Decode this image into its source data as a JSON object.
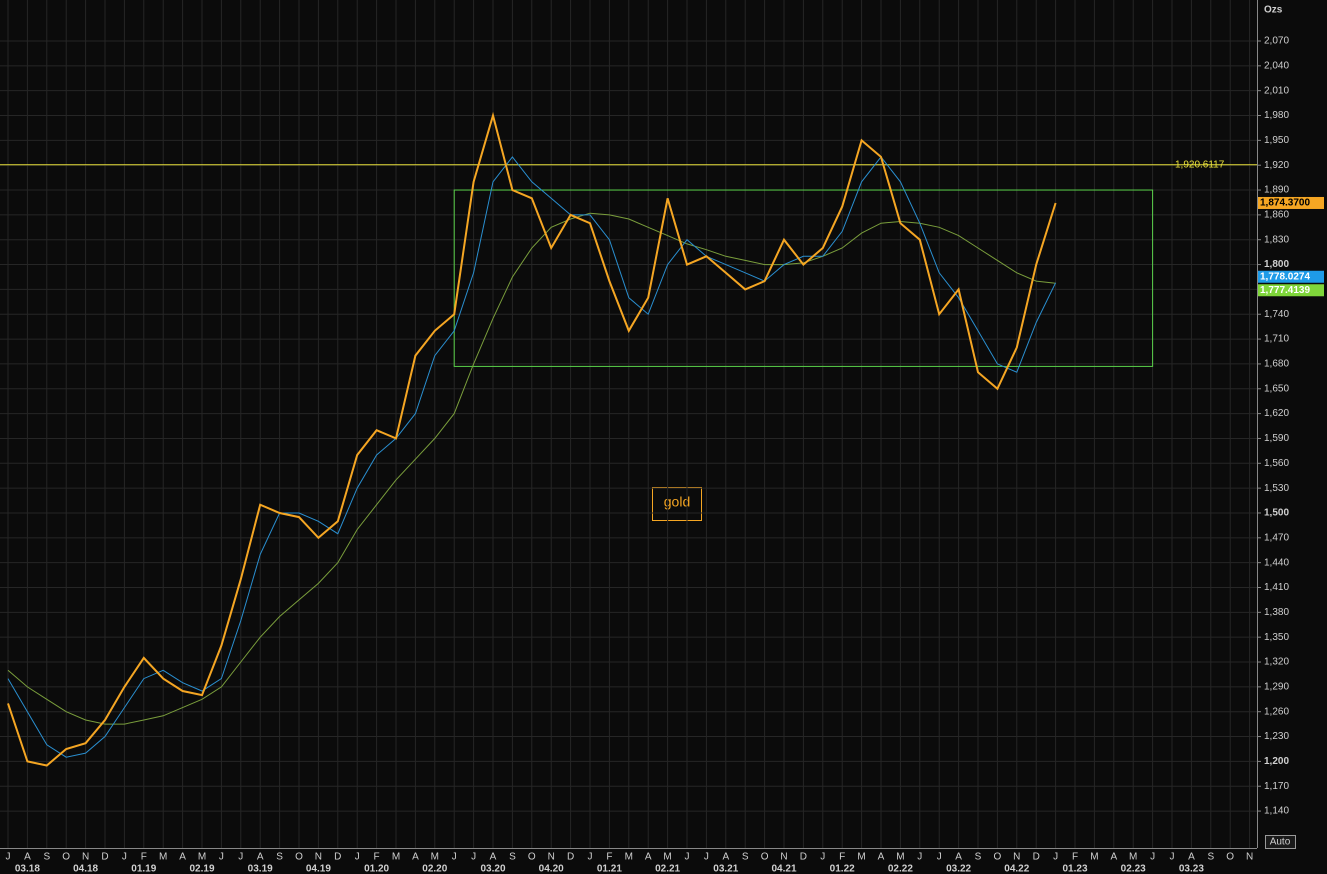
{
  "chart_data": {
    "type": "line",
    "unit_label": "Ozs",
    "annotation": "gold",
    "auto_button": "Auto",
    "ylim": [
      1095.4,
      2119.5
    ],
    "yticks": [
      {
        "value": 1140,
        "label": "1,140"
      },
      {
        "value": 1170,
        "label": "1,170"
      },
      {
        "value": 1200,
        "label": "1,200"
      },
      {
        "value": 1230,
        "label": "1,230"
      },
      {
        "value": 1260,
        "label": "1,260"
      },
      {
        "value": 1290,
        "label": "1,290"
      },
      {
        "value": 1320,
        "label": "1,320"
      },
      {
        "value": 1350,
        "label": "1,350"
      },
      {
        "value": 1380,
        "label": "1,380"
      },
      {
        "value": 1410,
        "label": "1,410"
      },
      {
        "value": 1440,
        "label": "1,440"
      },
      {
        "value": 1470,
        "label": "1,470"
      },
      {
        "value": 1500,
        "label": "1,500"
      },
      {
        "value": 1530,
        "label": "1,530"
      },
      {
        "value": 1560,
        "label": "1,560"
      },
      {
        "value": 1590,
        "label": "1,590"
      },
      {
        "value": 1620,
        "label": "1,620"
      },
      {
        "value": 1650,
        "label": "1,650"
      },
      {
        "value": 1680,
        "label": "1,680"
      },
      {
        "value": 1710,
        "label": "1,710"
      },
      {
        "value": 1740,
        "label": "1,740"
      },
      {
        "value": 1770,
        "label": "1,770"
      },
      {
        "value": 1800,
        "label": "1,800"
      },
      {
        "value": 1830,
        "label": "1,830"
      },
      {
        "value": 1860,
        "label": "1,860"
      },
      {
        "value": 1890,
        "label": "1,890"
      },
      {
        "value": 1920,
        "label": "1,920"
      },
      {
        "value": 1950,
        "label": "1,950"
      },
      {
        "value": 1980,
        "label": "1,980"
      },
      {
        "value": 2010,
        "label": "2,010"
      },
      {
        "value": 2040,
        "label": "2,040"
      },
      {
        "value": 2070,
        "label": "2,070"
      }
    ],
    "xticks": [
      {
        "value": "2018-07",
        "label": "J"
      },
      {
        "value": "2018-08",
        "label": "A"
      },
      {
        "value": "2018-09",
        "label": "S"
      },
      {
        "value": "2018-10",
        "label": "O"
      },
      {
        "value": "2018-11",
        "label": "N"
      },
      {
        "value": "2018-12",
        "label": "D"
      },
      {
        "value": "2019-01",
        "label": "J"
      },
      {
        "value": "2019-02",
        "label": "F"
      },
      {
        "value": "2019-03",
        "label": "M"
      },
      {
        "value": "2019-04",
        "label": "A"
      },
      {
        "value": "2019-05",
        "label": "M"
      },
      {
        "value": "2019-06",
        "label": "J"
      },
      {
        "value": "2019-07",
        "label": "J"
      },
      {
        "value": "2019-08",
        "label": "A"
      },
      {
        "value": "2019-09",
        "label": "S"
      },
      {
        "value": "2019-10",
        "label": "O"
      },
      {
        "value": "2019-11",
        "label": "N"
      },
      {
        "value": "2019-12",
        "label": "D"
      },
      {
        "value": "2020-01",
        "label": "J"
      },
      {
        "value": "2020-02",
        "label": "F"
      },
      {
        "value": "2020-03",
        "label": "M"
      },
      {
        "value": "2020-04",
        "label": "A"
      },
      {
        "value": "2020-05",
        "label": "M"
      },
      {
        "value": "2020-06",
        "label": "J"
      },
      {
        "value": "2020-07",
        "label": "J"
      },
      {
        "value": "2020-08",
        "label": "A"
      },
      {
        "value": "2020-09",
        "label": "S"
      },
      {
        "value": "2020-10",
        "label": "O"
      },
      {
        "value": "2020-11",
        "label": "N"
      },
      {
        "value": "2020-12",
        "label": "D"
      },
      {
        "value": "2021-01",
        "label": "J"
      },
      {
        "value": "2021-02",
        "label": "F"
      },
      {
        "value": "2021-03",
        "label": "M"
      },
      {
        "value": "2021-04",
        "label": "A"
      },
      {
        "value": "2021-05",
        "label": "M"
      },
      {
        "value": "2021-06",
        "label": "J"
      },
      {
        "value": "2021-07",
        "label": "J"
      },
      {
        "value": "2021-08",
        "label": "A"
      },
      {
        "value": "2021-09",
        "label": "S"
      },
      {
        "value": "2021-10",
        "label": "O"
      },
      {
        "value": "2021-11",
        "label": "N"
      },
      {
        "value": "2021-12",
        "label": "D"
      },
      {
        "value": "2022-01",
        "label": "J"
      },
      {
        "value": "2022-02",
        "label": "F"
      },
      {
        "value": "2022-03",
        "label": "M"
      },
      {
        "value": "2022-04",
        "label": "A"
      },
      {
        "value": "2022-05",
        "label": "M"
      },
      {
        "value": "2022-06",
        "label": "J"
      },
      {
        "value": "2022-07",
        "label": "J"
      },
      {
        "value": "2022-08",
        "label": "A"
      },
      {
        "value": "2022-09",
        "label": "S"
      },
      {
        "value": "2022-10",
        "label": "O"
      },
      {
        "value": "2022-11",
        "label": "N"
      },
      {
        "value": "2022-12",
        "label": "D"
      },
      {
        "value": "2023-01",
        "label": "J"
      },
      {
        "value": "2023-02",
        "label": "F"
      },
      {
        "value": "2023-03",
        "label": "M"
      },
      {
        "value": "2023-04",
        "label": "A"
      },
      {
        "value": "2023-05",
        "label": "M"
      },
      {
        "value": "2023-06",
        "label": "J"
      },
      {
        "value": "2023-07",
        "label": "J"
      },
      {
        "value": "2023-08",
        "label": "A"
      },
      {
        "value": "2023-09",
        "label": "S"
      },
      {
        "value": "2023-10",
        "label": "O"
      },
      {
        "value": "2023-11",
        "label": "N"
      }
    ],
    "quarter_ticks": [
      {
        "value": "2018-08",
        "label": "03.18"
      },
      {
        "value": "2018-11",
        "label": "04.18"
      },
      {
        "value": "2019-02",
        "label": "01.19"
      },
      {
        "value": "2019-05",
        "label": "02.19"
      },
      {
        "value": "2019-08",
        "label": "03.19"
      },
      {
        "value": "2019-11",
        "label": "04.19"
      },
      {
        "value": "2020-02",
        "label": "01.20"
      },
      {
        "value": "2020-05",
        "label": "02.20"
      },
      {
        "value": "2020-08",
        "label": "03.20"
      },
      {
        "value": "2020-11",
        "label": "04.20"
      },
      {
        "value": "2021-02",
        "label": "01.21"
      },
      {
        "value": "2021-05",
        "label": "02.21"
      },
      {
        "value": "2021-08",
        "label": "03.21"
      },
      {
        "value": "2021-11",
        "label": "04.21"
      },
      {
        "value": "2022-02",
        "label": "01.22"
      },
      {
        "value": "2022-05",
        "label": "02.22"
      },
      {
        "value": "2022-08",
        "label": "03.22"
      },
      {
        "value": "2022-11",
        "label": "04.22"
      },
      {
        "value": "2023-02",
        "label": "01.23"
      },
      {
        "value": "2023-05",
        "label": "02.23"
      },
      {
        "value": "2023-08",
        "label": "03.23"
      }
    ],
    "grid": true,
    "x": [
      "2018-07",
      "2018-08",
      "2018-09",
      "2018-10",
      "2018-11",
      "2018-12",
      "2019-01",
      "2019-02",
      "2019-03",
      "2019-04",
      "2019-05",
      "2019-06",
      "2019-07",
      "2019-08",
      "2019-09",
      "2019-10",
      "2019-11",
      "2019-12",
      "2020-01",
      "2020-02",
      "2020-03",
      "2020-04",
      "2020-05",
      "2020-06",
      "2020-07",
      "2020-08",
      "2020-09",
      "2020-10",
      "2020-11",
      "2020-12",
      "2021-01",
      "2021-02",
      "2021-03",
      "2021-04",
      "2021-05",
      "2021-06",
      "2021-07",
      "2021-08",
      "2021-09",
      "2021-10",
      "2021-11",
      "2021-12",
      "2022-01",
      "2022-02",
      "2022-03",
      "2022-04",
      "2022-05",
      "2022-06",
      "2022-07",
      "2022-08",
      "2022-09",
      "2022-10",
      "2022-11",
      "2022-12",
      "2023-01"
    ],
    "series": [
      {
        "color": "#7a9e3c",
        "values": [
          1310,
          1290,
          1275,
          1260,
          1250,
          1245,
          1245,
          1250,
          1255,
          1265,
          1275,
          1290,
          1320,
          1350,
          1375,
          1395,
          1415,
          1440,
          1480,
          1510,
          1540,
          1565,
          1590,
          1620,
          1680,
          1735,
          1785,
          1820,
          1845,
          1855,
          1862,
          1860,
          1855,
          1845,
          1835,
          1825,
          1818,
          1810,
          1805,
          1800,
          1800,
          1802,
          1810,
          1820,
          1838,
          1850,
          1852,
          1850,
          1845,
          1835,
          1820,
          1805,
          1790,
          1780,
          1777.4139
        ],
        "last_value_label": "1,777.4139",
        "tag_color": "#7fd63a"
      },
      {
        "color": "#2a8fd0",
        "values": [
          1300,
          1260,
          1220,
          1205,
          1210,
          1230,
          1265,
          1300,
          1310,
          1295,
          1285,
          1300,
          1370,
          1450,
          1500,
          1500,
          1490,
          1475,
          1530,
          1570,
          1590,
          1620,
          1690,
          1720,
          1790,
          1900,
          1930,
          1900,
          1880,
          1860,
          1860,
          1830,
          1760,
          1740,
          1800,
          1830,
          1810,
          1800,
          1790,
          1780,
          1800,
          1810,
          1810,
          1840,
          1900,
          1930,
          1900,
          1850,
          1790,
          1760,
          1720,
          1680,
          1670,
          1730,
          1778.0274
        ],
        "last_value_label": "1,778.0274",
        "tag_color": "#1e9be8"
      },
      {
        "color": "#f5a623",
        "values": [
          1270,
          1200,
          1195,
          1215,
          1222,
          1250,
          1290,
          1325,
          1300,
          1285,
          1280,
          1340,
          1420,
          1510,
          1500,
          1495,
          1470,
          1490,
          1570,
          1600,
          1590,
          1690,
          1720,
          1740,
          1900,
          1980,
          1890,
          1880,
          1820,
          1860,
          1850,
          1780,
          1720,
          1760,
          1880,
          1800,
          1810,
          1790,
          1770,
          1780,
          1830,
          1800,
          1820,
          1870,
          1950,
          1930,
          1850,
          1830,
          1740,
          1770,
          1670,
          1650,
          1700,
          1800,
          1874.37
        ],
        "last_value_label": "1,874.3700",
        "tag_color": "#f5a623"
      }
    ],
    "reference_line": {
      "value": 1920.6117,
      "label": "1,920.6117",
      "color": "#e8e03a"
    },
    "range_box": {
      "x": [
        "2020-06",
        "2023-06"
      ],
      "ylim": [
        1677,
        1890
      ],
      "color": "#5ad04a"
    }
  }
}
